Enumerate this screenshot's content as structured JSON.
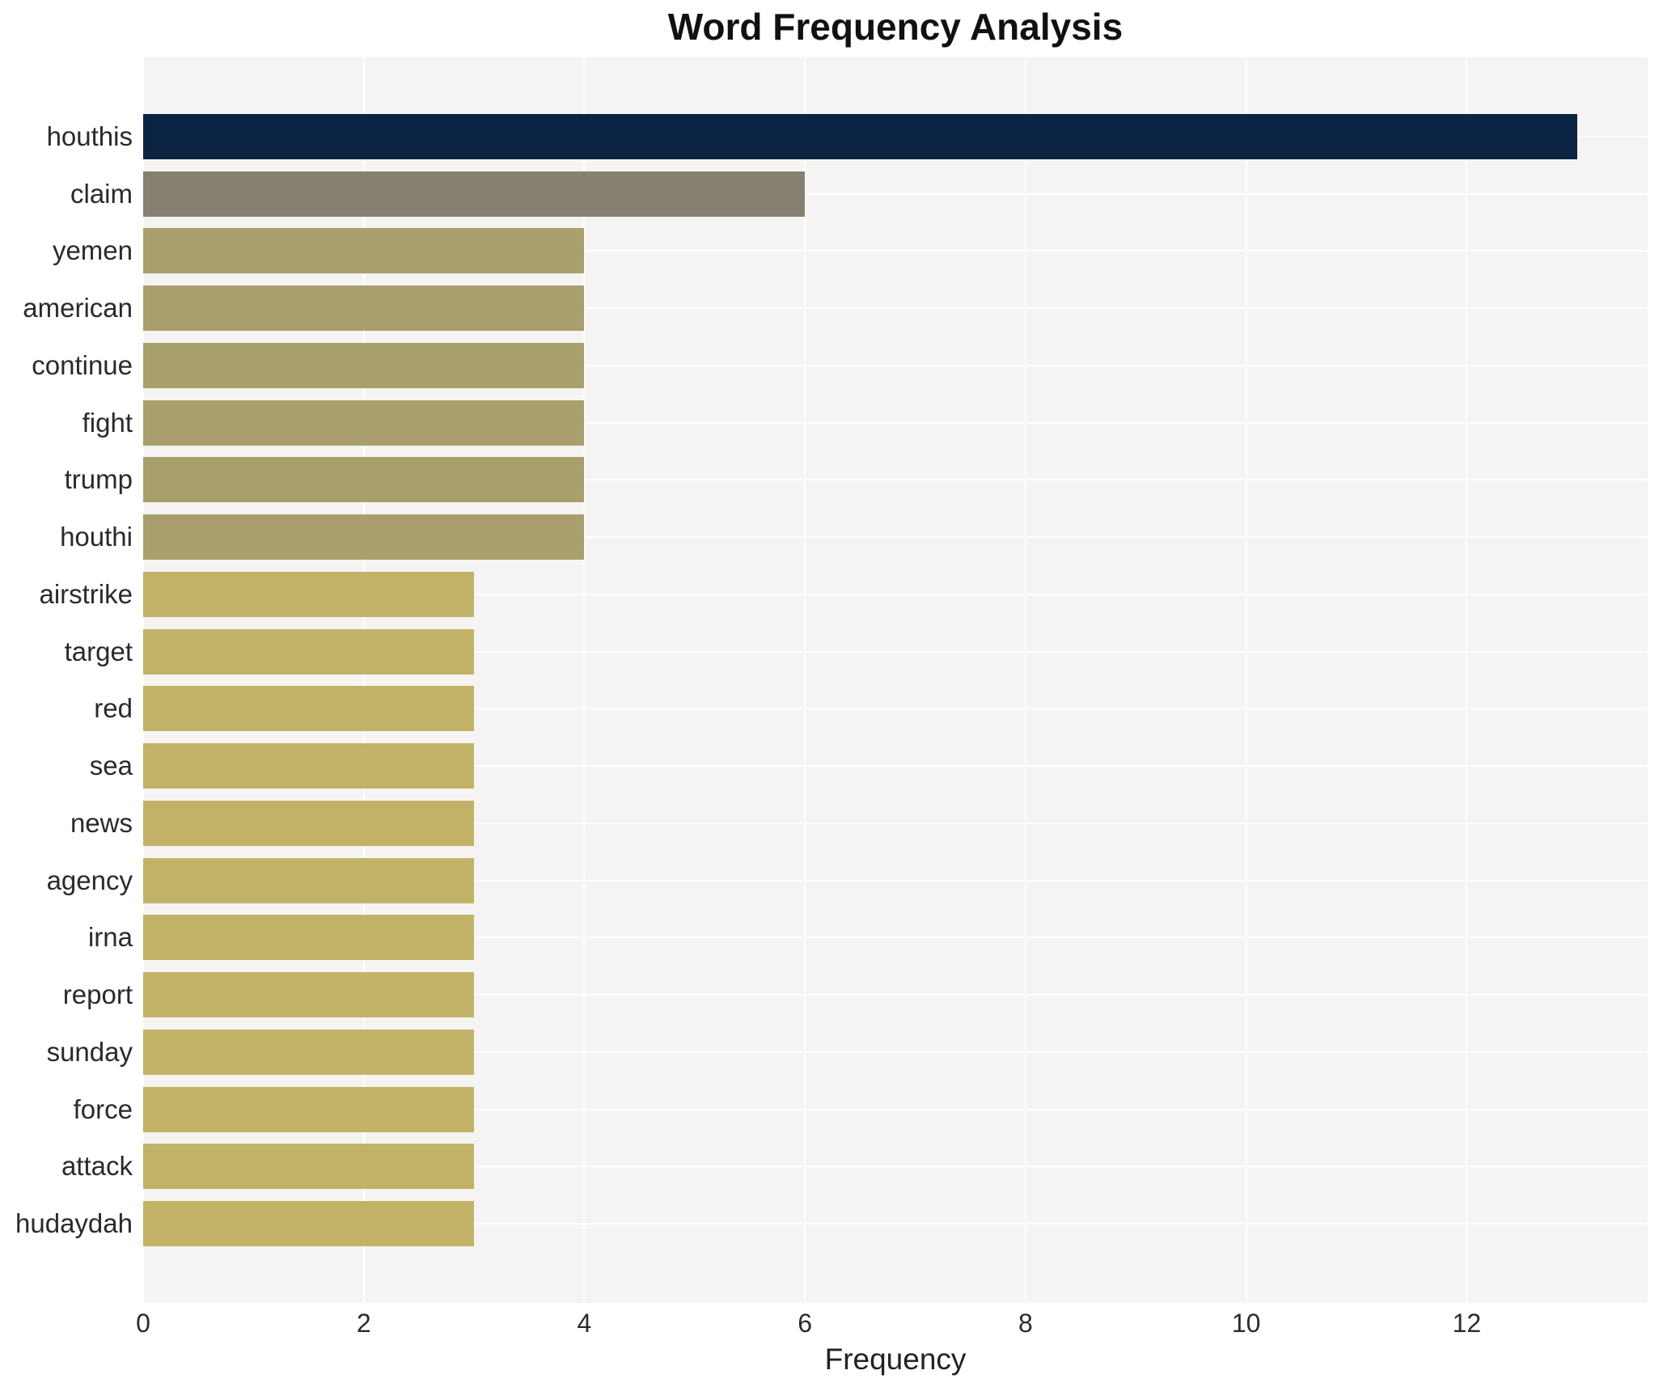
{
  "title": "Word Frequency Analysis",
  "chart_data": {
    "type": "bar",
    "orientation": "horizontal",
    "title": "Word Frequency Analysis",
    "xlabel": "Frequency",
    "ylabel": "",
    "categories": [
      "houthis",
      "claim",
      "yemen",
      "american",
      "continue",
      "fight",
      "trump",
      "houthi",
      "airstrike",
      "target",
      "red",
      "sea",
      "news",
      "agency",
      "irna",
      "report",
      "sunday",
      "force",
      "attack",
      "hudaydah"
    ],
    "values": [
      13,
      6,
      4,
      4,
      4,
      4,
      4,
      4,
      3,
      3,
      3,
      3,
      3,
      3,
      3,
      3,
      3,
      3,
      3,
      3
    ],
    "bar_colors": [
      "#0c2444",
      "#85806f",
      "#a99f6c",
      "#a99f6c",
      "#a99f6c",
      "#a99f6c",
      "#a99f6c",
      "#a99f6c",
      "#c2b268",
      "#c2b268",
      "#c2b268",
      "#c2b268",
      "#c2b268",
      "#c2b268",
      "#c2b268",
      "#c2b268",
      "#c2b268",
      "#c2b268",
      "#c2b268",
      "#c2b268"
    ],
    "xlim": [
      0,
      13.64
    ],
    "xticks": [
      0,
      2,
      4,
      6,
      8,
      10,
      12
    ],
    "grid": true,
    "legend_position": "none",
    "plot_bg_color": "#f5f4f2",
    "grid_color": "#ffffff",
    "accent_colors": {
      "highest": "#0c2444",
      "second": "#85806f",
      "mid": "#a99f6c",
      "low": "#c2b268"
    }
  }
}
